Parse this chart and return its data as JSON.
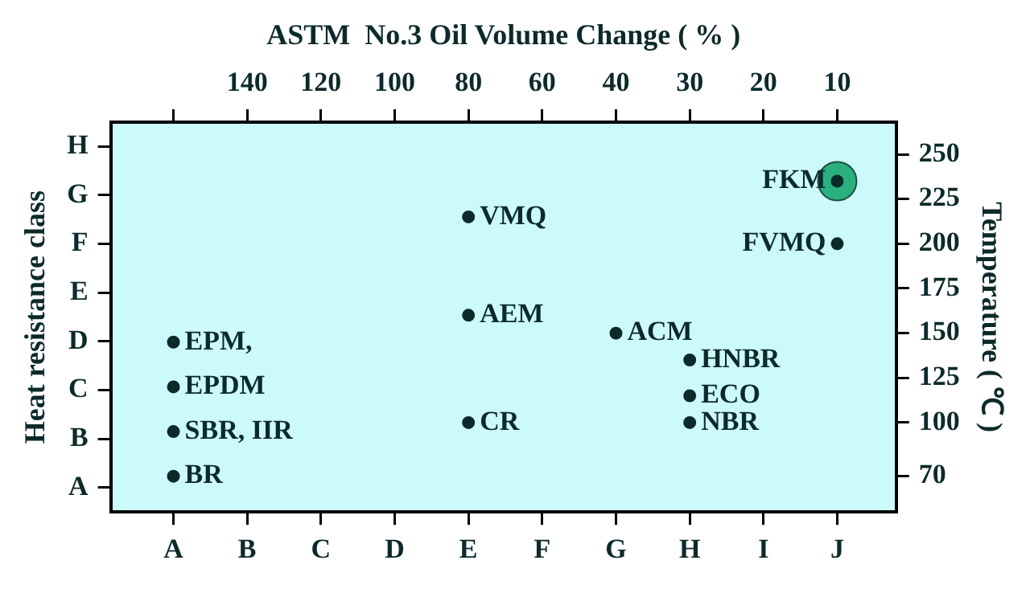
{
  "chart_data": {
    "type": "scatter",
    "x2label": "ASTM  No.3 Oil Volume Change ( % )",
    "ylabel": "Heat resistance class",
    "y2label": "Temperature ( ℃ )",
    "categories": [
      "A",
      "B",
      "C",
      "D",
      "E",
      "F",
      "G",
      "H",
      "I",
      "J"
    ],
    "y_categories": [
      "H",
      "G",
      "F",
      "E",
      "D",
      "C",
      "B",
      "A"
    ],
    "y2lim": [
      50,
      268
    ],
    "y2ticks": [
      70,
      100,
      125,
      150,
      175,
      200,
      225,
      250
    ],
    "series": [
      {
        "color": "#2ab07f",
        "x": [
          "J"
        ],
        "values": [
          235
        ],
        "marker": "circle",
        "axis": "y2"
      },
      {
        "name": "FKM",
        "color": "#0d2a2a",
        "x": [
          "J"
        ],
        "values": [
          235
        ],
        "axis": "y2"
      },
      {
        "name": "VMQ",
        "color": "#0d2a2a",
        "x": [
          "E"
        ],
        "values": [
          215
        ],
        "axis": "y2"
      },
      {
        "name": "FVMQ",
        "color": "#0d2a2a",
        "x": [
          "J"
        ],
        "values": [
          200
        ],
        "axis": "y2"
      },
      {
        "name": "AEM",
        "color": "#0d2a2a",
        "x": [
          "E"
        ],
        "values": [
          160
        ],
        "axis": "y2"
      },
      {
        "name": "ACM",
        "color": "#0d2a2a",
        "x": [
          "G"
        ],
        "values": [
          150
        ],
        "axis": "y2"
      },
      {
        "name": "HNBR",
        "color": "#0d2a2a",
        "x": [
          "H"
        ],
        "values": [
          135
        ],
        "axis": "y2"
      },
      {
        "name": "ECO",
        "color": "#0d2a2a",
        "x": [
          "H"
        ],
        "values": [
          115
        ],
        "axis": "y2"
      },
      {
        "name": "NBR",
        "color": "#0d2a2a",
        "x": [
          "H"
        ],
        "values": [
          100
        ],
        "axis": "y2"
      },
      {
        "name": "CR",
        "color": "#0d2a2a",
        "x": [
          "E"
        ],
        "values": [
          100
        ],
        "axis": "y2"
      },
      {
        "name": "EPM,",
        "color": "#0d2a2a",
        "x": [
          "A"
        ],
        "values": [
          145
        ],
        "axis": "y2"
      },
      {
        "name": "EPDM",
        "color": "#0d2a2a",
        "x": [
          "A"
        ],
        "values": [
          120
        ],
        "axis": "y2"
      },
      {
        "name": "SBR, IIR",
        "color": "#0d2a2a",
        "x": [
          "A"
        ],
        "values": [
          95
        ],
        "axis": "y2"
      },
      {
        "name": "BR",
        "color": "#0d2a2a",
        "x": [
          "A"
        ],
        "values": [
          70
        ],
        "axis": "y2"
      }
    ],
    "annotations": [
      "140",
      "120",
      "100",
      "80",
      "60",
      "40",
      "30",
      "20",
      "10"
    ],
    "marker": "circle",
    "grid": false,
    "legend": false
  }
}
